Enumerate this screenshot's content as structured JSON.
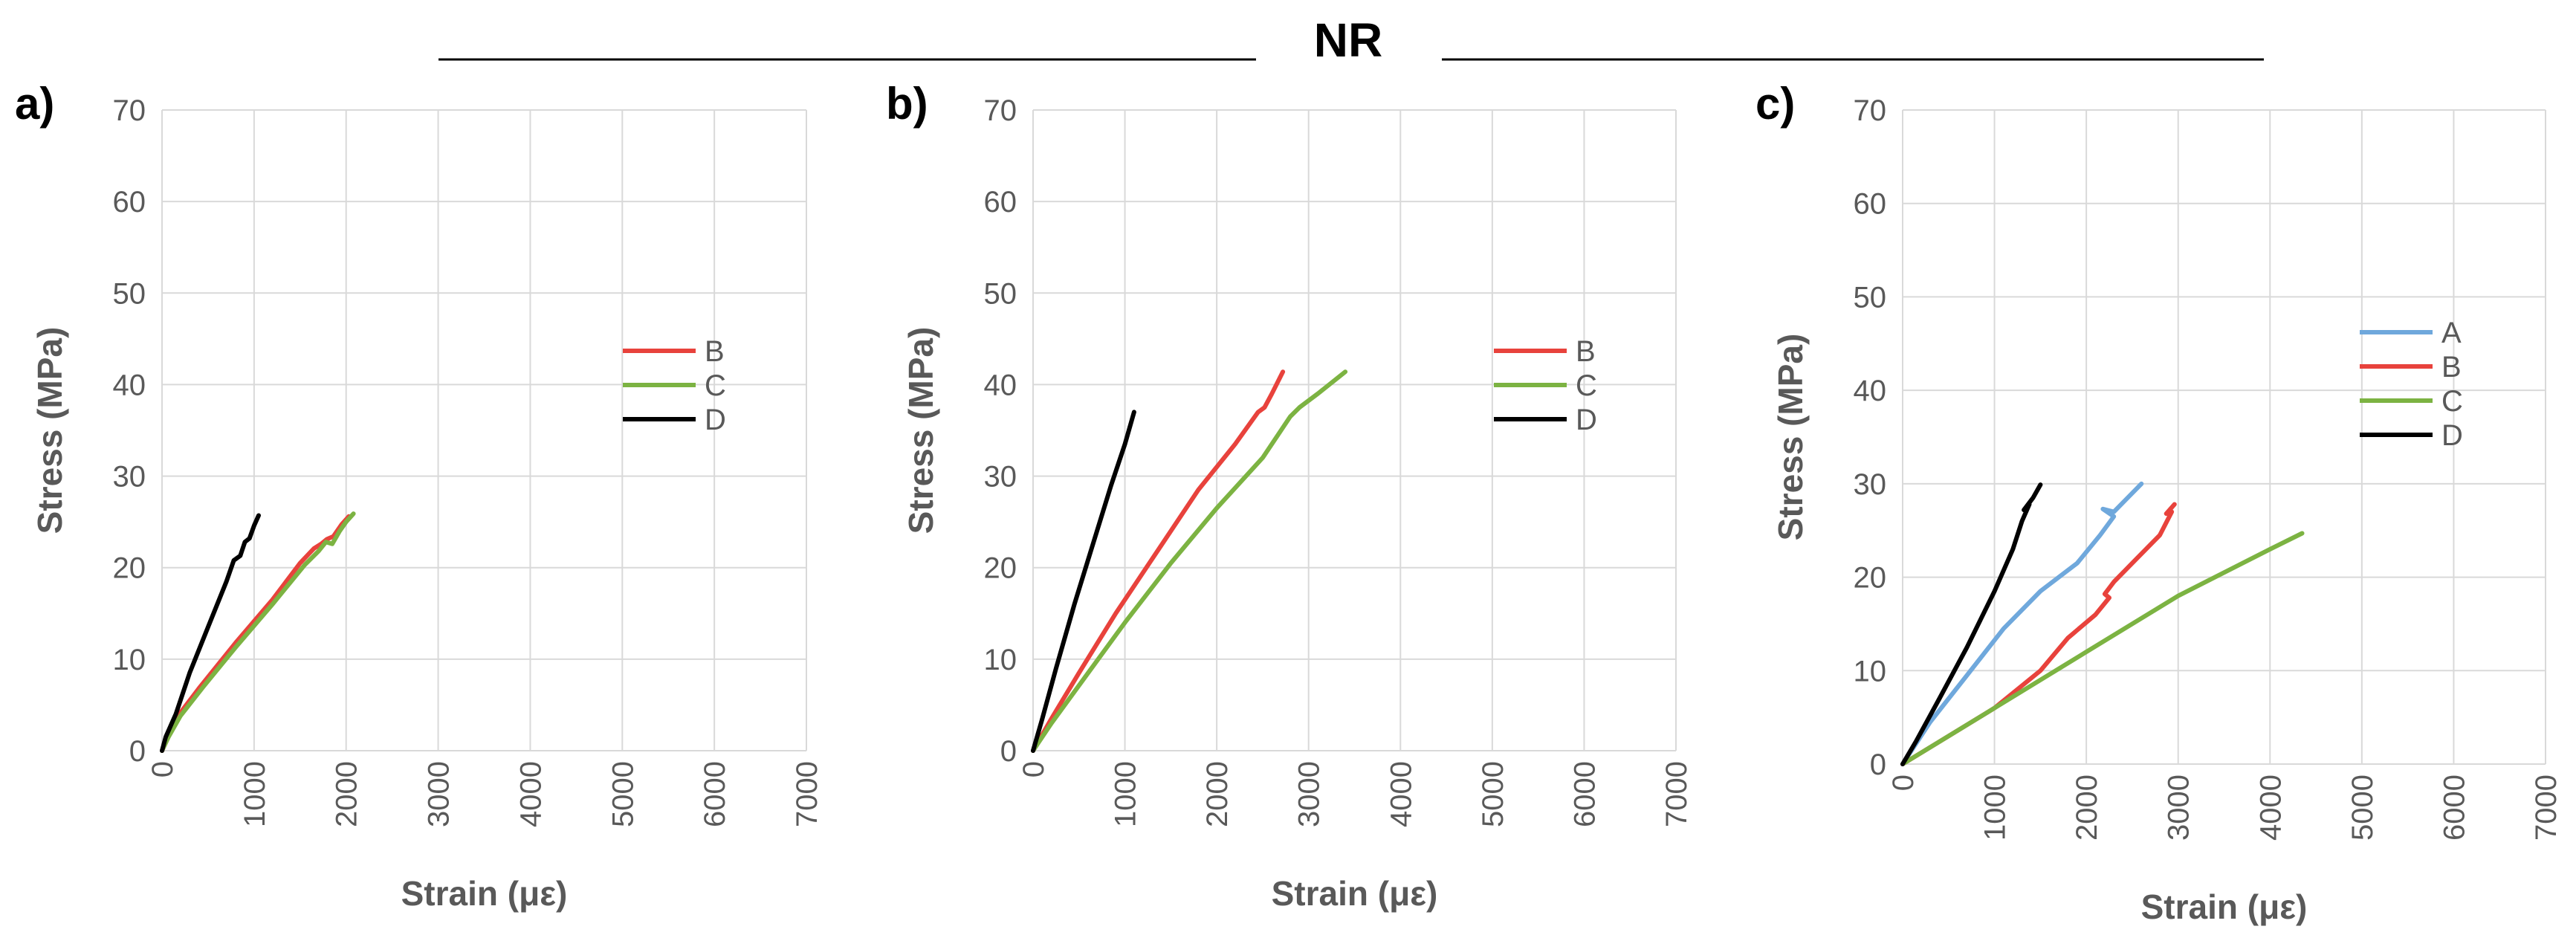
{
  "super_title": "NR",
  "chart_data": [
    {
      "type": "line",
      "panel_label": "a)",
      "title": "",
      "xlabel": "Strain (με)",
      "ylabel": "Stress (MPa)",
      "xlim": [
        0,
        7000
      ],
      "ylim": [
        0,
        70
      ],
      "xticks": [
        "0",
        "1000",
        "2000",
        "3000",
        "4000",
        "5000",
        "6000",
        "7000"
      ],
      "yticks": [
        "0",
        "10",
        "20",
        "30",
        "40",
        "50",
        "60",
        "70"
      ],
      "grid": true,
      "legend_position": "right",
      "series": [
        {
          "name": "B",
          "color": "#e8423c",
          "points": [
            [
              0,
              0
            ],
            [
              60,
              1.3
            ],
            [
              150,
              3.5
            ],
            [
              400,
              6.8
            ],
            [
              800,
              11.8
            ],
            [
              1200,
              16.5
            ],
            [
              1500,
              20.5
            ],
            [
              1650,
              22.1
            ],
            [
              1730,
              22.6
            ],
            [
              1790,
              23.1
            ],
            [
              1860,
              23.4
            ],
            [
              1950,
              24.7
            ],
            [
              2030,
              25.6
            ]
          ]
        },
        {
          "name": "C",
          "color": "#7cb342",
          "points": [
            [
              0,
              0
            ],
            [
              70,
              1.5
            ],
            [
              200,
              3.8
            ],
            [
              450,
              7.0
            ],
            [
              800,
              11.3
            ],
            [
              1200,
              16.0
            ],
            [
              1550,
              20.3
            ],
            [
              1700,
              21.8
            ],
            [
              1780,
              22.8
            ],
            [
              1850,
              22.6
            ],
            [
              1930,
              24.0
            ],
            [
              2000,
              25.0
            ],
            [
              2080,
              25.9
            ]
          ]
        },
        {
          "name": "D",
          "color": "#000000",
          "points": [
            [
              0,
              0
            ],
            [
              40,
              1.5
            ],
            [
              150,
              4.0
            ],
            [
              300,
              8.5
            ],
            [
              500,
              13.5
            ],
            [
              700,
              18.5
            ],
            [
              780,
              20.8
            ],
            [
              850,
              21.3
            ],
            [
              900,
              22.8
            ],
            [
              950,
              23.2
            ],
            [
              1000,
              24.6
            ],
            [
              1050,
              25.7
            ]
          ]
        }
      ]
    },
    {
      "type": "line",
      "panel_label": "b)",
      "title": "",
      "xlabel": "Strain (με)",
      "ylabel": "Stress (MPa)",
      "xlim": [
        0,
        7000
      ],
      "ylim": [
        0,
        70
      ],
      "xticks": [
        "0",
        "1000",
        "2000",
        "3000",
        "4000",
        "5000",
        "6000",
        "7000"
      ],
      "yticks": [
        "0",
        "10",
        "20",
        "30",
        "40",
        "50",
        "60",
        "70"
      ],
      "grid": true,
      "legend_position": "right",
      "series": [
        {
          "name": "B",
          "color": "#e8423c",
          "points": [
            [
              0,
              0
            ],
            [
              200,
              3.5
            ],
            [
              500,
              8.5
            ],
            [
              900,
              15.0
            ],
            [
              1400,
              22.5
            ],
            [
              1800,
              28.5
            ],
            [
              2200,
              33.5
            ],
            [
              2450,
              37.0
            ],
            [
              2520,
              37.5
            ],
            [
              2600,
              39.0
            ],
            [
              2720,
              41.4
            ]
          ]
        },
        {
          "name": "C",
          "color": "#7cb342",
          "points": [
            [
              0,
              0
            ],
            [
              200,
              3.0
            ],
            [
              600,
              8.5
            ],
            [
              1000,
              14.0
            ],
            [
              1500,
              20.5
            ],
            [
              2000,
              26.5
            ],
            [
              2500,
              32.0
            ],
            [
              2800,
              36.5
            ],
            [
              2900,
              37.5
            ],
            [
              3100,
              39.0
            ],
            [
              3400,
              41.4
            ]
          ]
        },
        {
          "name": "D",
          "color": "#000000",
          "points": [
            [
              0,
              0
            ],
            [
              100,
              3.5
            ],
            [
              250,
              9.0
            ],
            [
              450,
              16.0
            ],
            [
              650,
              22.5
            ],
            [
              850,
              29.0
            ],
            [
              1000,
              33.5
            ],
            [
              1100,
              37.0
            ]
          ]
        }
      ]
    },
    {
      "type": "line",
      "panel_label": "c)",
      "title": "",
      "xlabel": "Strain (με)",
      "ylabel": "Stress (MPa)",
      "xlim": [
        0,
        7000
      ],
      "ylim": [
        0,
        70
      ],
      "xticks": [
        "0",
        "1000",
        "2000",
        "3000",
        "4000",
        "5000",
        "6000",
        "7000"
      ],
      "yticks": [
        "0",
        "10",
        "20",
        "30",
        "40",
        "50",
        "60",
        "70"
      ],
      "grid": true,
      "legend_position": "right",
      "series": [
        {
          "name": "A",
          "color": "#6fa8dc",
          "points": [
            [
              0,
              0
            ],
            [
              300,
              4.5
            ],
            [
              700,
              9.5
            ],
            [
              1100,
              14.5
            ],
            [
              1500,
              18.5
            ],
            [
              1900,
              21.5
            ],
            [
              2150,
              24.5
            ],
            [
              2300,
              26.5
            ],
            [
              2180,
              27.3
            ],
            [
              2300,
              27.0
            ],
            [
              2450,
              28.5
            ],
            [
              2600,
              30.0
            ]
          ]
        },
        {
          "name": "B",
          "color": "#e8423c",
          "points": [
            [
              0,
              0
            ],
            [
              500,
              3.0
            ],
            [
              1000,
              6.0
            ],
            [
              1500,
              10.0
            ],
            [
              1800,
              13.5
            ],
            [
              2100,
              16.0
            ],
            [
              2250,
              17.8
            ],
            [
              2200,
              18.2
            ],
            [
              2300,
              19.5
            ],
            [
              2550,
              22.0
            ],
            [
              2800,
              24.5
            ],
            [
              2930,
              27.0
            ],
            [
              2870,
              26.8
            ],
            [
              2960,
              27.8
            ]
          ]
        },
        {
          "name": "C",
          "color": "#7cb342",
          "points": [
            [
              0,
              0
            ],
            [
              500,
              3.0
            ],
            [
              1000,
              6.0
            ],
            [
              2000,
              12.0
            ],
            [
              3000,
              18.0
            ],
            [
              4000,
              23.0
            ],
            [
              4350,
              24.7
            ]
          ]
        },
        {
          "name": "D",
          "color": "#000000",
          "points": [
            [
              0,
              0
            ],
            [
              150,
              2.5
            ],
            [
              400,
              7.0
            ],
            [
              700,
              12.5
            ],
            [
              1000,
              18.5
            ],
            [
              1200,
              23.0
            ],
            [
              1300,
              26.0
            ],
            [
              1380,
              27.8
            ],
            [
              1320,
              27.2
            ],
            [
              1420,
              28.5
            ],
            [
              1500,
              29.9
            ]
          ]
        }
      ]
    }
  ]
}
